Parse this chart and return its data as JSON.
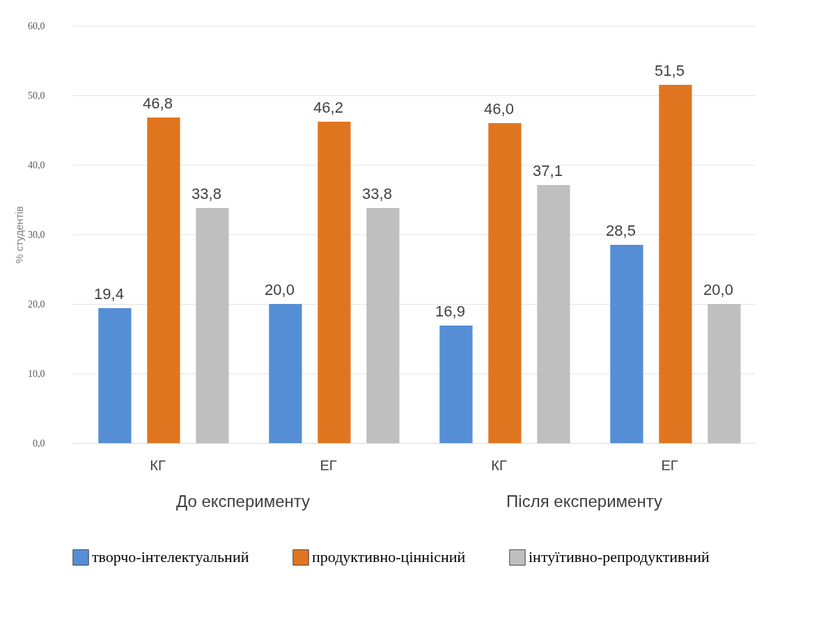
{
  "chart_data": {
    "type": "bar",
    "ylabel": "% студентів",
    "categories": [
      "КГ",
      "ЕГ",
      "КГ",
      "ЕГ"
    ],
    "series": [
      {
        "name": "творчо-інтелектуальний",
        "color": "#558ed5",
        "values": [
          19.4,
          20.0,
          16.9,
          28.5
        ],
        "value_labels": [
          "19,4",
          "20,0",
          "16,9",
          "28,5"
        ]
      },
      {
        "name": "продуктивно-ціннісний",
        "color": "#e07520",
        "values": [
          46.8,
          46.2,
          46.0,
          51.5
        ],
        "value_labels": [
          "46,8",
          "46,2",
          "46,0",
          "51,5"
        ]
      },
      {
        "name": "інтуїтивно-репродуктивний",
        "color": "#bfbfbf",
        "values": [
          33.8,
          33.8,
          37.1,
          20.0
        ],
        "value_labels": [
          "33,8",
          "33,8",
          "37,1",
          "20,0"
        ]
      }
    ],
    "annotations": [
      "До експерименту",
      "Після експерименту"
    ],
    "ylim": [
      0,
      60
    ],
    "yticks": [
      {
        "value": 0,
        "label": "0,0"
      },
      {
        "value": 10,
        "label": "10,0"
      },
      {
        "value": 20,
        "label": "20,0"
      },
      {
        "value": 30,
        "label": "30,0"
      },
      {
        "value": 40,
        "label": "40,0"
      },
      {
        "value": 50,
        "label": "50,0"
      },
      {
        "value": 60,
        "label": "60,0"
      }
    ],
    "grid": "y",
    "legend": "bottom"
  }
}
